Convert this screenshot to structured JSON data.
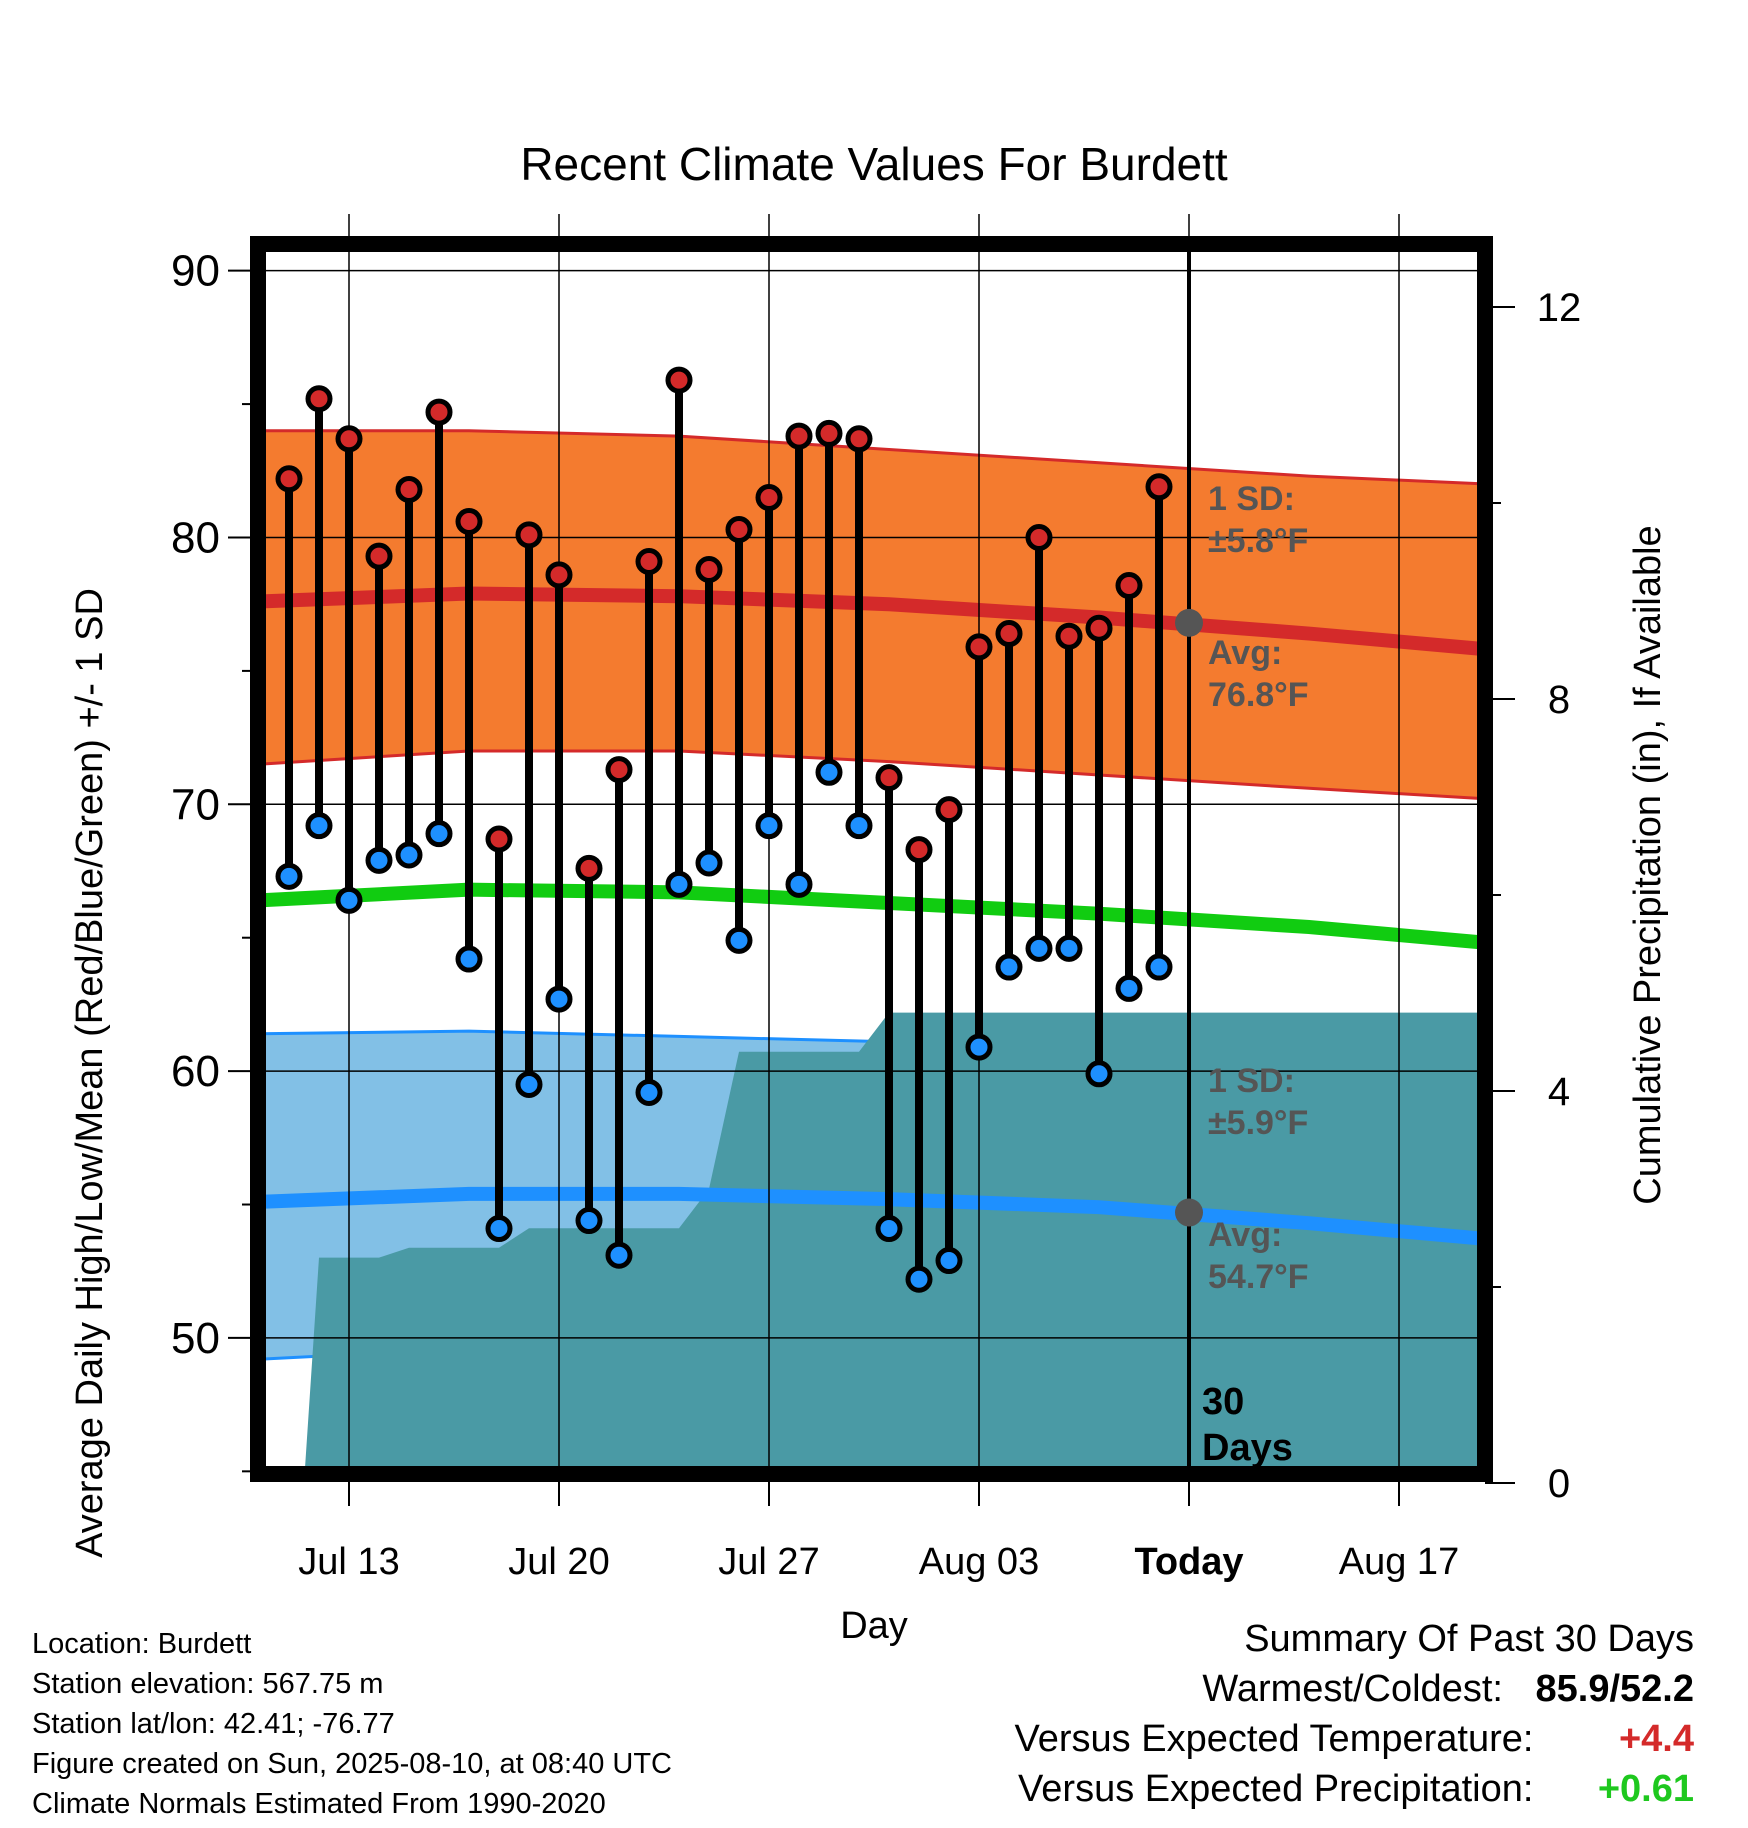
{
  "title": "Recent Climate Values For Burdett",
  "chart_data": {
    "type": "line",
    "title": "Recent Climate Values For Burdett",
    "xlabel": "Day",
    "ylabel": "Average Daily High/Low/Mean (Red/Blue/Green) +/- 1 SD",
    "y2label": "Cumulative Precipitation (in), If Available",
    "x_ticks": [
      "Jul 13",
      "Jul 20",
      "Jul 27",
      "Aug 03",
      "Today",
      "Aug 17"
    ],
    "ylim": [
      44.9,
      91
    ],
    "y_ticks": [
      50,
      60,
      70,
      80,
      90
    ],
    "y2lim": [
      0,
      24
    ],
    "y2_ticks": [
      0,
      4,
      8,
      12
    ],
    "grid": true,
    "dates": [
      "Jul 11",
      "Jul 12",
      "Jul 13",
      "Jul 14",
      "Jul 15",
      "Jul 16",
      "Jul 17",
      "Jul 18",
      "Jul 19",
      "Jul 20",
      "Jul 21",
      "Jul 22",
      "Jul 23",
      "Jul 24",
      "Jul 25",
      "Jul 26",
      "Jul 27",
      "Jul 28",
      "Jul 29",
      "Jul 30",
      "Jul 31",
      "Aug 01",
      "Aug 02",
      "Aug 03",
      "Aug 04",
      "Aug 05",
      "Aug 06",
      "Aug 07",
      "Aug 08",
      "Aug 09"
    ],
    "series": [
      {
        "name": "High",
        "color": "#d42a2a",
        "values": [
          82.2,
          85.2,
          83.7,
          79.3,
          81.8,
          84.7,
          80.6,
          68.7,
          80.1,
          78.6,
          67.6,
          71.3,
          79.1,
          85.9,
          78.8,
          80.3,
          81.5,
          83.8,
          83.9,
          83.7,
          71.0,
          68.3,
          69.8,
          75.9,
          76.4,
          80.0,
          76.3,
          76.6,
          78.2,
          81.9
        ]
      },
      {
        "name": "Low",
        "color": "#1e90ff",
        "values": [
          67.3,
          69.2,
          66.4,
          67.9,
          68.1,
          68.9,
          64.2,
          54.1,
          59.5,
          62.7,
          54.4,
          53.1,
          59.2,
          67.0,
          67.8,
          64.9,
          69.2,
          67.0,
          71.2,
          69.2,
          54.1,
          52.2,
          52.9,
          60.9,
          63.9,
          64.6,
          64.6,
          59.9,
          63.1,
          63.9
        ]
      }
    ],
    "normals": {
      "x": [
        "Jul 10",
        "Jul 17",
        "Jul 24",
        "Jul 31",
        "Aug 07",
        "Aug 14",
        "Aug 20"
      ],
      "high_avg": [
        77.6,
        77.9,
        77.8,
        77.5,
        77.0,
        76.4,
        75.8
      ],
      "high_upper": [
        84.0,
        84.0,
        83.8,
        83.3,
        82.8,
        82.3,
        82.0
      ],
      "high_lower": [
        71.5,
        72.0,
        72.0,
        71.6,
        71.1,
        70.6,
        70.2
      ],
      "mean_avg": [
        66.4,
        66.8,
        66.7,
        66.3,
        65.9,
        65.4,
        64.8
      ],
      "low_avg": [
        55.1,
        55.4,
        55.4,
        55.2,
        54.9,
        54.3,
        53.7
      ],
      "low_upper": [
        61.4,
        61.5,
        61.3,
        61.1,
        60.8,
        60.3,
        59.9
      ],
      "low_lower": [
        49.2,
        49.6,
        49.6,
        49.5,
        49.4,
        49.4,
        49.4
      ]
    },
    "precip": {
      "x": [
        "Jul 10",
        "Jul 11.5",
        "Jul 12",
        "Jul 14",
        "Jul 15",
        "Jul 16",
        "Jul 18",
        "Jul 19",
        "Jul 20",
        "Jul 24",
        "Jul 25",
        "Jul 26",
        "Jul 30",
        "Jul 31",
        "Aug 20"
      ],
      "values": [
        0.0,
        0.0,
        2.3,
        2.3,
        2.4,
        2.4,
        2.4,
        2.6,
        2.6,
        2.6,
        3.0,
        4.4,
        4.4,
        4.8,
        4.8
      ],
      "color": "#4a9aa5"
    },
    "today_marker": {
      "label_line1": "30",
      "label_line2": "Days",
      "high_avg": 76.8,
      "low_avg": 54.7
    },
    "annotations": {
      "high_sd_label": "1 SD:",
      "high_sd_value": "±5.8°F",
      "high_avg_label": "Avg:",
      "high_avg_value": "76.8°F",
      "low_sd_label": "1 SD:",
      "low_sd_value": "±5.9°F",
      "low_avg_label": "Avg:",
      "low_avg_value": "54.7°F"
    }
  },
  "location": {
    "line1": "Location: Burdett",
    "line2": "Station elevation: 567.75 m",
    "line3": "Station lat/lon: 42.41; -76.77",
    "line4": "Figure created on Sun, 2025-08-10, at 08:40 UTC",
    "line5": "Climate Normals Estimated From 1990-2020"
  },
  "summary": {
    "heading": "Summary Of Past 30 Days",
    "warmest_label": "Warmest/Coldest:",
    "warmest_value": "85.9/52.2",
    "temp_label": "Versus Expected Temperature:",
    "temp_value": "+4.4",
    "temp_color": "#d42a2a",
    "precip_label": "Versus Expected Precipitation:",
    "precip_value": "+0.61",
    "precip_color": "#1ec81e"
  }
}
